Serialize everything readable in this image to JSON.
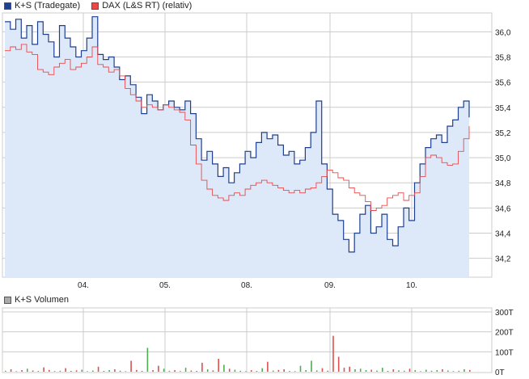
{
  "legend": {
    "kurs": "K+S (Tradegate)",
    "dax": "DAX (L&S RT) (relativ)",
    "volumen": "K+S Volumen"
  },
  "colors": {
    "kurs_line": "#1f3f8f",
    "kurs_fill": "#dde8f8",
    "dax_line": "#e84a4a",
    "vol_up": "#4caf50",
    "vol_down": "#d9534f",
    "grid": "#cccccc",
    "legend_kurs": "#1f3f8f",
    "legend_dax": "#e84a4a",
    "legend_vol": "#aaaaaa"
  },
  "chart_data": [
    {
      "type": "area",
      "x_ticks": [
        "04.",
        "05.",
        "08.",
        "09.",
        "10."
      ],
      "y_ticks": [
        "36,0",
        "35,8",
        "35,6",
        "35,4",
        "35,2",
        "35,0",
        "34,8",
        "34,6",
        "34,4",
        "34,2"
      ],
      "ylim": [
        34.05,
        36.15
      ],
      "series": [
        {
          "name": "K+S (Tradegate)",
          "values": [
            36.08,
            36.02,
            36.1,
            35.95,
            36.05,
            35.9,
            36.08,
            35.98,
            35.92,
            35.8,
            36.05,
            35.95,
            35.88,
            35.8,
            35.85,
            35.95,
            36.12,
            35.82,
            35.78,
            35.8,
            35.72,
            35.62,
            35.65,
            35.58,
            35.48,
            35.35,
            35.5,
            35.45,
            35.38,
            35.42,
            35.45,
            35.4,
            35.38,
            35.45,
            35.35,
            35.15,
            34.98,
            35.05,
            34.95,
            34.85,
            34.92,
            34.8,
            34.88,
            34.95,
            35.05,
            35.0,
            35.12,
            35.2,
            35.15,
            35.18,
            35.1,
            35.02,
            35.05,
            34.95,
            34.98,
            35.08,
            35.2,
            35.45,
            34.95,
            34.75,
            34.55,
            34.5,
            34.35,
            34.25,
            34.4,
            34.55,
            34.62,
            34.4,
            34.45,
            34.55,
            34.35,
            34.3,
            34.45,
            34.6,
            34.5,
            34.8,
            34.95,
            35.08,
            35.15,
            35.18,
            35.12,
            35.25,
            35.3,
            35.4,
            35.45,
            35.32
          ]
        },
        {
          "name": "DAX (L&S RT) (relativ)",
          "values": [
            35.85,
            35.88,
            35.86,
            35.9,
            35.84,
            35.82,
            35.7,
            35.68,
            35.66,
            35.72,
            35.75,
            35.78,
            35.7,
            35.72,
            35.75,
            35.8,
            35.88,
            35.74,
            35.72,
            35.68,
            35.7,
            35.65,
            35.55,
            35.5,
            35.45,
            35.4,
            35.42,
            35.4,
            35.38,
            35.42,
            35.4,
            35.38,
            35.36,
            35.3,
            35.1,
            34.95,
            34.82,
            34.75,
            34.7,
            34.68,
            34.66,
            34.7,
            34.72,
            34.7,
            34.75,
            34.78,
            34.8,
            34.82,
            34.8,
            34.78,
            34.76,
            34.74,
            34.72,
            34.74,
            34.72,
            34.75,
            34.76,
            34.8,
            34.85,
            34.9,
            34.88,
            34.84,
            34.82,
            34.76,
            34.72,
            34.7,
            34.65,
            34.58,
            34.6,
            34.62,
            34.68,
            34.7,
            34.72,
            34.66,
            34.7,
            34.72,
            34.85,
            35.0,
            35.02,
            35.0,
            34.96,
            34.94,
            34.95,
            35.05,
            35.15,
            35.25
          ]
        }
      ]
    },
    {
      "type": "bar",
      "y_ticks": [
        "300T",
        "200T",
        "100T",
        "0T"
      ],
      "ylim": [
        0,
        300
      ],
      "series": [
        {
          "name": "K+S Volumen",
          "values": [
            5,
            12,
            3,
            8,
            15,
            6,
            4,
            22,
            9,
            3,
            5,
            18,
            4,
            7,
            10,
            3,
            6,
            25,
            4,
            8,
            12,
            5,
            3,
            55,
            9,
            4,
            120,
            8,
            30,
            15,
            5,
            8,
            3,
            20,
            6,
            4,
            45,
            12,
            7,
            65,
            35,
            15,
            10,
            5,
            3,
            8,
            4,
            18,
            50,
            6,
            9,
            12,
            4,
            3,
            30,
            8,
            55,
            7,
            18,
            5,
            180,
            75,
            20,
            25,
            12,
            15,
            8,
            10,
            6,
            20,
            4,
            12,
            7,
            5,
            15,
            8,
            3,
            10,
            5,
            8,
            12,
            6,
            3,
            5,
            12,
            9
          ]
        }
      ]
    }
  ]
}
